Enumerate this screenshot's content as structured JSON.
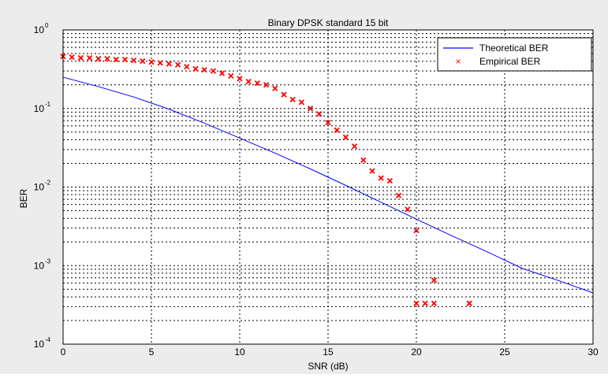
{
  "chart_data": {
    "type": "scatter",
    "title": "Binary DPSK standard 15 bit",
    "xlabel": "SNR (dB)",
    "ylabel": "BER",
    "xlim": [
      0,
      30
    ],
    "ylim": [
      0.0001,
      1
    ],
    "yscale": "log",
    "grid": true,
    "legend_position": "top-right",
    "x_ticks": [
      "0",
      "5",
      "10",
      "15",
      "20",
      "25",
      "30"
    ],
    "y_ticks": [
      {
        "base": "10",
        "exp": "0"
      },
      {
        "base": "10",
        "exp": "-1"
      },
      {
        "base": "10",
        "exp": "-2"
      },
      {
        "base": "10",
        "exp": "-3"
      },
      {
        "base": "10",
        "exp": "-4"
      }
    ],
    "series": [
      {
        "name": "Theoretical BER",
        "kind": "line",
        "color": "#0000ff",
        "x": [
          0,
          2,
          4,
          6,
          8,
          10,
          12,
          14,
          16,
          18,
          20,
          22,
          24,
          26,
          28,
          30
        ],
        "y": [
          0.25,
          0.19,
          0.14,
          0.098,
          0.065,
          0.042,
          0.027,
          0.017,
          0.0105,
          0.0064,
          0.0039,
          0.0024,
          0.0015,
          0.00092,
          0.00065,
          0.00045
        ]
      },
      {
        "name": "Empirical BER",
        "kind": "markers",
        "color": "#ff0000",
        "x": [
          0,
          0.5,
          1,
          1.5,
          2,
          2.5,
          3,
          3.5,
          4,
          4.5,
          5,
          5.5,
          6,
          6.5,
          7,
          7.5,
          8,
          8.5,
          9,
          9.5,
          10,
          10.5,
          11,
          11.5,
          12,
          12.5,
          13,
          13.5,
          14,
          14.5,
          15,
          15.5,
          16,
          16.5,
          17,
          17.5,
          18,
          18.5,
          19,
          19.5,
          20,
          20.5,
          21,
          23
        ],
        "y": [
          0.46,
          0.45,
          0.44,
          0.44,
          0.43,
          0.43,
          0.42,
          0.42,
          0.41,
          0.4,
          0.39,
          0.38,
          0.37,
          0.36,
          0.34,
          0.32,
          0.31,
          0.3,
          0.28,
          0.26,
          0.24,
          0.22,
          0.21,
          0.2,
          0.18,
          0.15,
          0.13,
          0.12,
          0.1,
          0.085,
          0.066,
          0.053,
          0.043,
          0.033,
          0.022,
          0.016,
          0.013,
          0.012,
          0.0078,
          0.0052,
          0.0028,
          0.00033,
          0.00065,
          0.00033
        ],
        "x_extra": [
          20,
          21,
          23
        ],
        "y_extra": [
          0.00033,
          0.00033,
          0.00033
        ]
      }
    ]
  }
}
